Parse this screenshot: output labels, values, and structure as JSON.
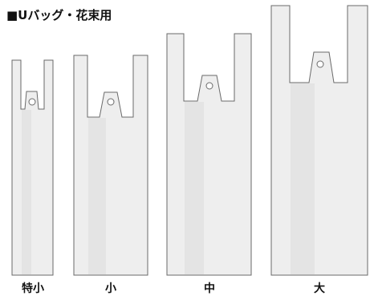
{
  "page": {
    "title": "■Uバッグ・花束用"
  },
  "bags": [
    {
      "label": "特小"
    },
    {
      "label": "小"
    },
    {
      "label": "中"
    },
    {
      "label": "大"
    }
  ],
  "colors": {
    "bag_fill": "#eeeeee",
    "bag_panel": "#e4e4e4",
    "bag_outline": "#6a6a6a",
    "background": "#ffffff"
  }
}
